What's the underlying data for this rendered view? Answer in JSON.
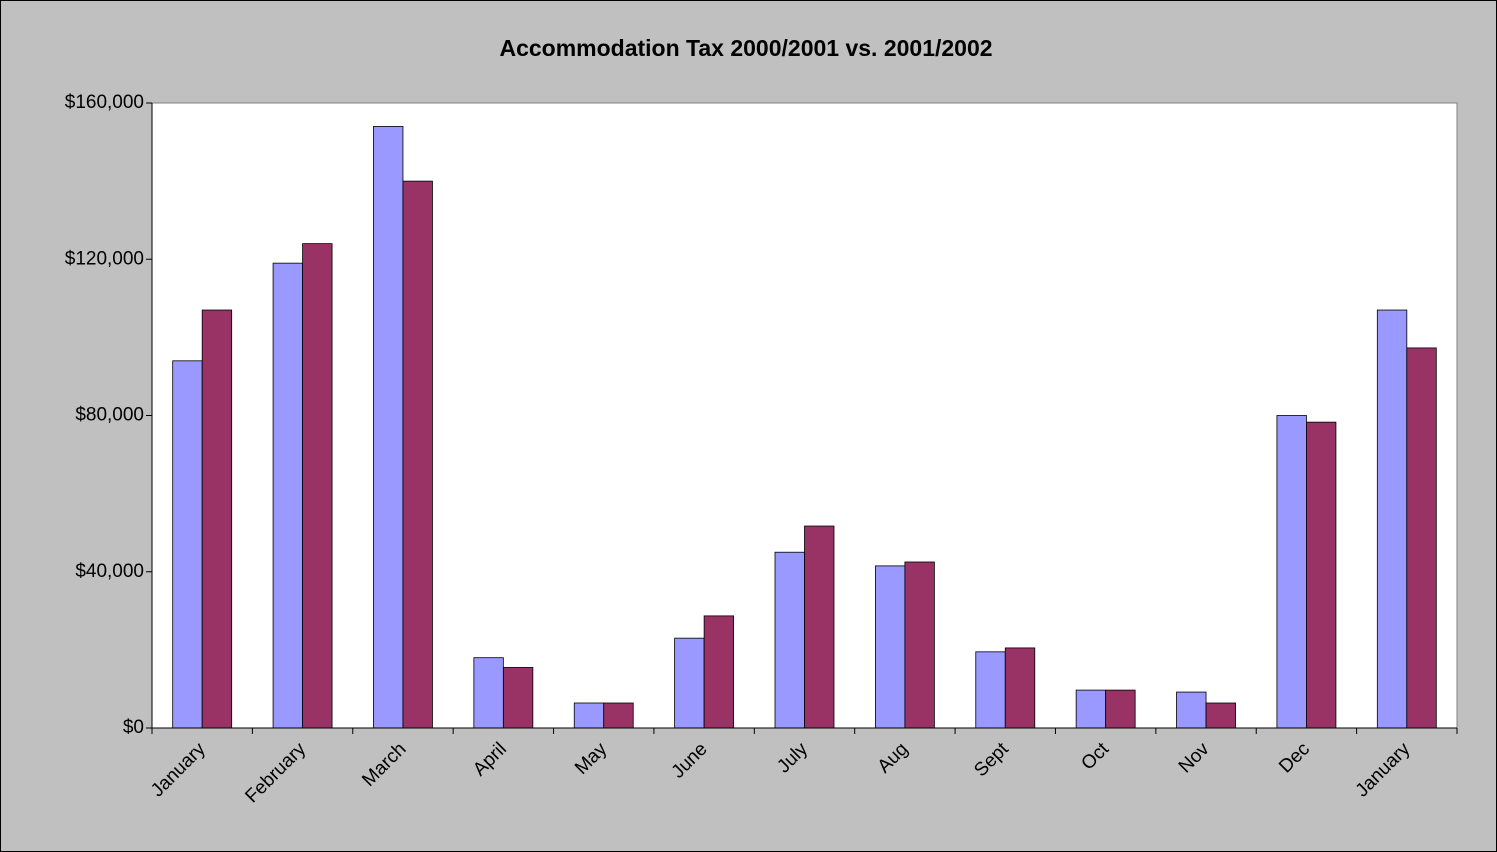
{
  "chart_data": {
    "type": "bar",
    "title": "Accommodation Tax 2000/2001 vs. 2001/2002",
    "categories": [
      "January",
      "February",
      "March",
      "April",
      "May",
      "June",
      "July",
      "Aug",
      "Sept",
      "Oct",
      "Nov",
      "Dec",
      "January"
    ],
    "series": [
      {
        "color": "#9999ff",
        "values": [
          94000,
          119000,
          154000,
          18000,
          6400,
          23000,
          45000,
          41500,
          19500,
          9700,
          9200,
          80000,
          107000
        ]
      },
      {
        "color": "#993366",
        "values": [
          107000,
          124000,
          140000,
          15500,
          6400,
          28700,
          51700,
          42500,
          20500,
          9700,
          6400,
          78300,
          97300
        ]
      }
    ],
    "ylim": [
      0,
      160000
    ],
    "yticks": [
      {
        "value": 0,
        "label": "$0"
      },
      {
        "value": 40000,
        "label": "$40,000"
      },
      {
        "value": 80000,
        "label": "$80,000"
      },
      {
        "value": 120000,
        "label": "$120,000"
      },
      {
        "value": 160000,
        "label": "$160,000"
      }
    ],
    "grid": false
  }
}
